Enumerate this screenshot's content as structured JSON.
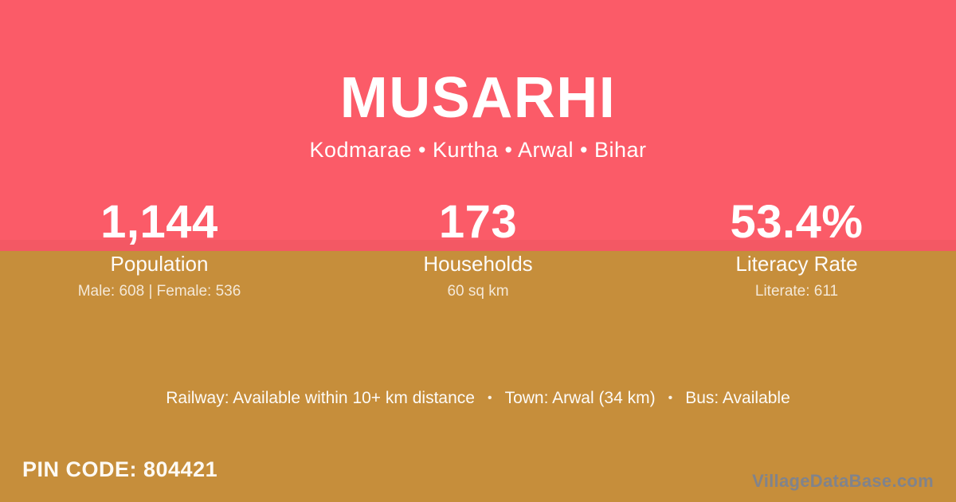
{
  "colors": {
    "top_bg": "#FB5B68",
    "bottom_bg": "#C68E3B",
    "text_main": "#FFFFFF",
    "watermark": "#80838C"
  },
  "header": {
    "title": "MUSARHI",
    "breadcrumb": "Kodmarae • Kurtha • Arwal • Bihar",
    "breadcrumb_parts": [
      "Kodmarae",
      "Kurtha",
      "Arwal",
      "Bihar"
    ]
  },
  "stats": [
    {
      "value": "1,144",
      "label": "Population",
      "detail": "Male: 608 | Female: 536"
    },
    {
      "value": "173",
      "label": "Households",
      "detail": "60 sq km"
    },
    {
      "value": "53.4%",
      "label": "Literacy Rate",
      "detail": "Literate: 611"
    }
  ],
  "transport": {
    "railway": "Railway: Available within 10+ km distance",
    "town": "Town: Arwal (34 km)",
    "bus": "Bus: Available",
    "separator": "•"
  },
  "footer": {
    "pin_code_label": "PIN CODE:",
    "pin_code_value": "804421",
    "pin_code_display": "PIN CODE: 804421",
    "watermark": "VillageDataBase.com"
  }
}
